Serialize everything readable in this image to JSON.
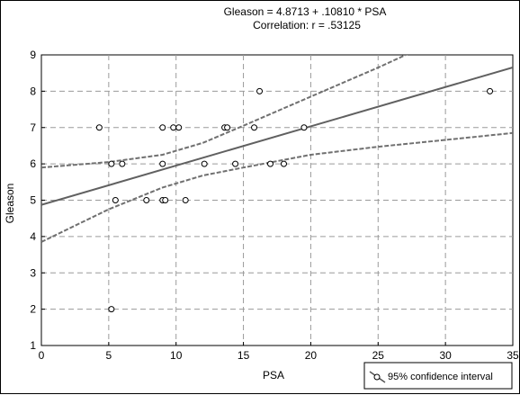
{
  "chart_data": {
    "type": "scatter",
    "title": "Gleason  = 4.8713 + .10810 * PSA",
    "subtitle": "Correlation: r =  .53125",
    "xlabel": "PSA",
    "ylabel": "Gleason",
    "xlim": [
      0,
      35
    ],
    "ylim": [
      1,
      9
    ],
    "xticks": [
      0,
      5,
      10,
      15,
      20,
      25,
      30,
      35
    ],
    "yticks": [
      1,
      2,
      3,
      4,
      5,
      6,
      7,
      8,
      9
    ],
    "grid": true,
    "legend": {
      "label": "95% confidence interval",
      "position": "bottom-right"
    },
    "regression": {
      "intercept": 4.8713,
      "slope": 0.1081
    },
    "confidence_band": {
      "x": [
        0,
        5,
        9,
        12,
        15,
        20,
        25,
        30,
        35
      ],
      "upper": [
        5.9,
        6.05,
        6.25,
        6.58,
        7.05,
        7.85,
        8.65,
        9.5,
        10.3
      ],
      "lower": [
        3.85,
        4.75,
        5.35,
        5.68,
        5.9,
        6.25,
        6.47,
        6.66,
        6.85
      ]
    },
    "points": [
      {
        "x": 4.3,
        "y": 7
      },
      {
        "x": 5.2,
        "y": 6
      },
      {
        "x": 5.2,
        "y": 2
      },
      {
        "x": 5.5,
        "y": 5
      },
      {
        "x": 6.0,
        "y": 6
      },
      {
        "x": 7.8,
        "y": 5
      },
      {
        "x": 9.0,
        "y": 7
      },
      {
        "x": 9.0,
        "y": 6
      },
      {
        "x": 9.0,
        "y": 5
      },
      {
        "x": 9.2,
        "y": 5
      },
      {
        "x": 9.8,
        "y": 7
      },
      {
        "x": 10.2,
        "y": 7
      },
      {
        "x": 10.7,
        "y": 5
      },
      {
        "x": 12.1,
        "y": 6
      },
      {
        "x": 13.6,
        "y": 7
      },
      {
        "x": 13.8,
        "y": 7
      },
      {
        "x": 14.4,
        "y": 6
      },
      {
        "x": 15.8,
        "y": 7
      },
      {
        "x": 16.2,
        "y": 8
      },
      {
        "x": 17.0,
        "y": 6
      },
      {
        "x": 18.0,
        "y": 6
      },
      {
        "x": 19.5,
        "y": 7
      },
      {
        "x": 33.3,
        "y": 8
      }
    ],
    "colors": {
      "line": "#606060",
      "band": "#707070",
      "grid": "#9a9a9a",
      "marker": "#000000"
    }
  }
}
